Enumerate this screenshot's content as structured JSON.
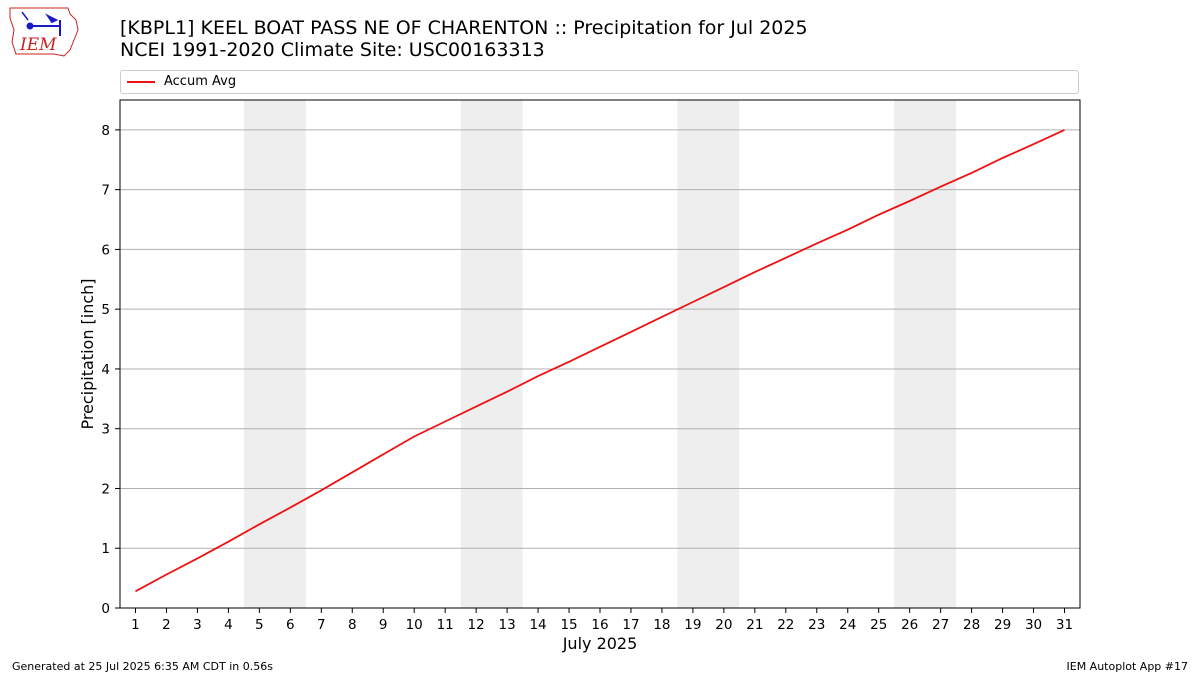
{
  "header": {
    "title_line1": "[KBPL1] KEEL BOAT PASS NE OF CHARENTON :: Precipitation for Jul 2025",
    "title_line2": "NCEI 1991-2020 Climate Site: USC00163313"
  },
  "logo": {
    "text": "IEM",
    "color": "#cc2222",
    "icon_color": "#1a1acc"
  },
  "footer": {
    "generated": "Generated at 25 Jul 2025 6:35 AM CDT in 0.56s",
    "app": "IEM Autoplot App #17"
  },
  "chart_data": {
    "type": "line",
    "xlabel": "July 2025",
    "ylabel": "Precipitation [inch]",
    "xlim": [
      0.5,
      31.5
    ],
    "ylim": [
      0,
      8.5
    ],
    "x_ticks": [
      1,
      2,
      3,
      4,
      5,
      6,
      7,
      8,
      9,
      10,
      11,
      12,
      13,
      14,
      15,
      16,
      17,
      18,
      19,
      20,
      21,
      22,
      23,
      24,
      25,
      26,
      27,
      28,
      29,
      30,
      31
    ],
    "y_ticks": [
      0,
      1,
      2,
      3,
      4,
      5,
      6,
      7,
      8
    ],
    "grid": "horizontal",
    "legend_position": "top",
    "weekend_shading": [
      [
        5,
        6
      ],
      [
        12,
        13
      ],
      [
        19,
        20
      ],
      [
        26,
        27
      ]
    ],
    "colors": {
      "line": "#ee1111",
      "weekend": "#eeeeee",
      "grid": "#b0b0b0"
    },
    "series": [
      {
        "name": "Accum Avg",
        "x": [
          1,
          2,
          3,
          4,
          5,
          6,
          7,
          8,
          9,
          10,
          11,
          12,
          13,
          14,
          15,
          16,
          17,
          18,
          19,
          20,
          21,
          22,
          23,
          24,
          25,
          26,
          27,
          28,
          29,
          30,
          31
        ],
        "values": [
          0.28,
          0.56,
          0.83,
          1.11,
          1.4,
          1.68,
          1.97,
          2.27,
          2.57,
          2.87,
          3.12,
          3.37,
          3.62,
          3.88,
          4.12,
          4.37,
          4.62,
          4.87,
          5.12,
          5.37,
          5.62,
          5.86,
          6.1,
          6.33,
          6.58,
          6.81,
          7.05,
          7.28,
          7.53,
          7.76,
          8.0
        ]
      }
    ]
  }
}
